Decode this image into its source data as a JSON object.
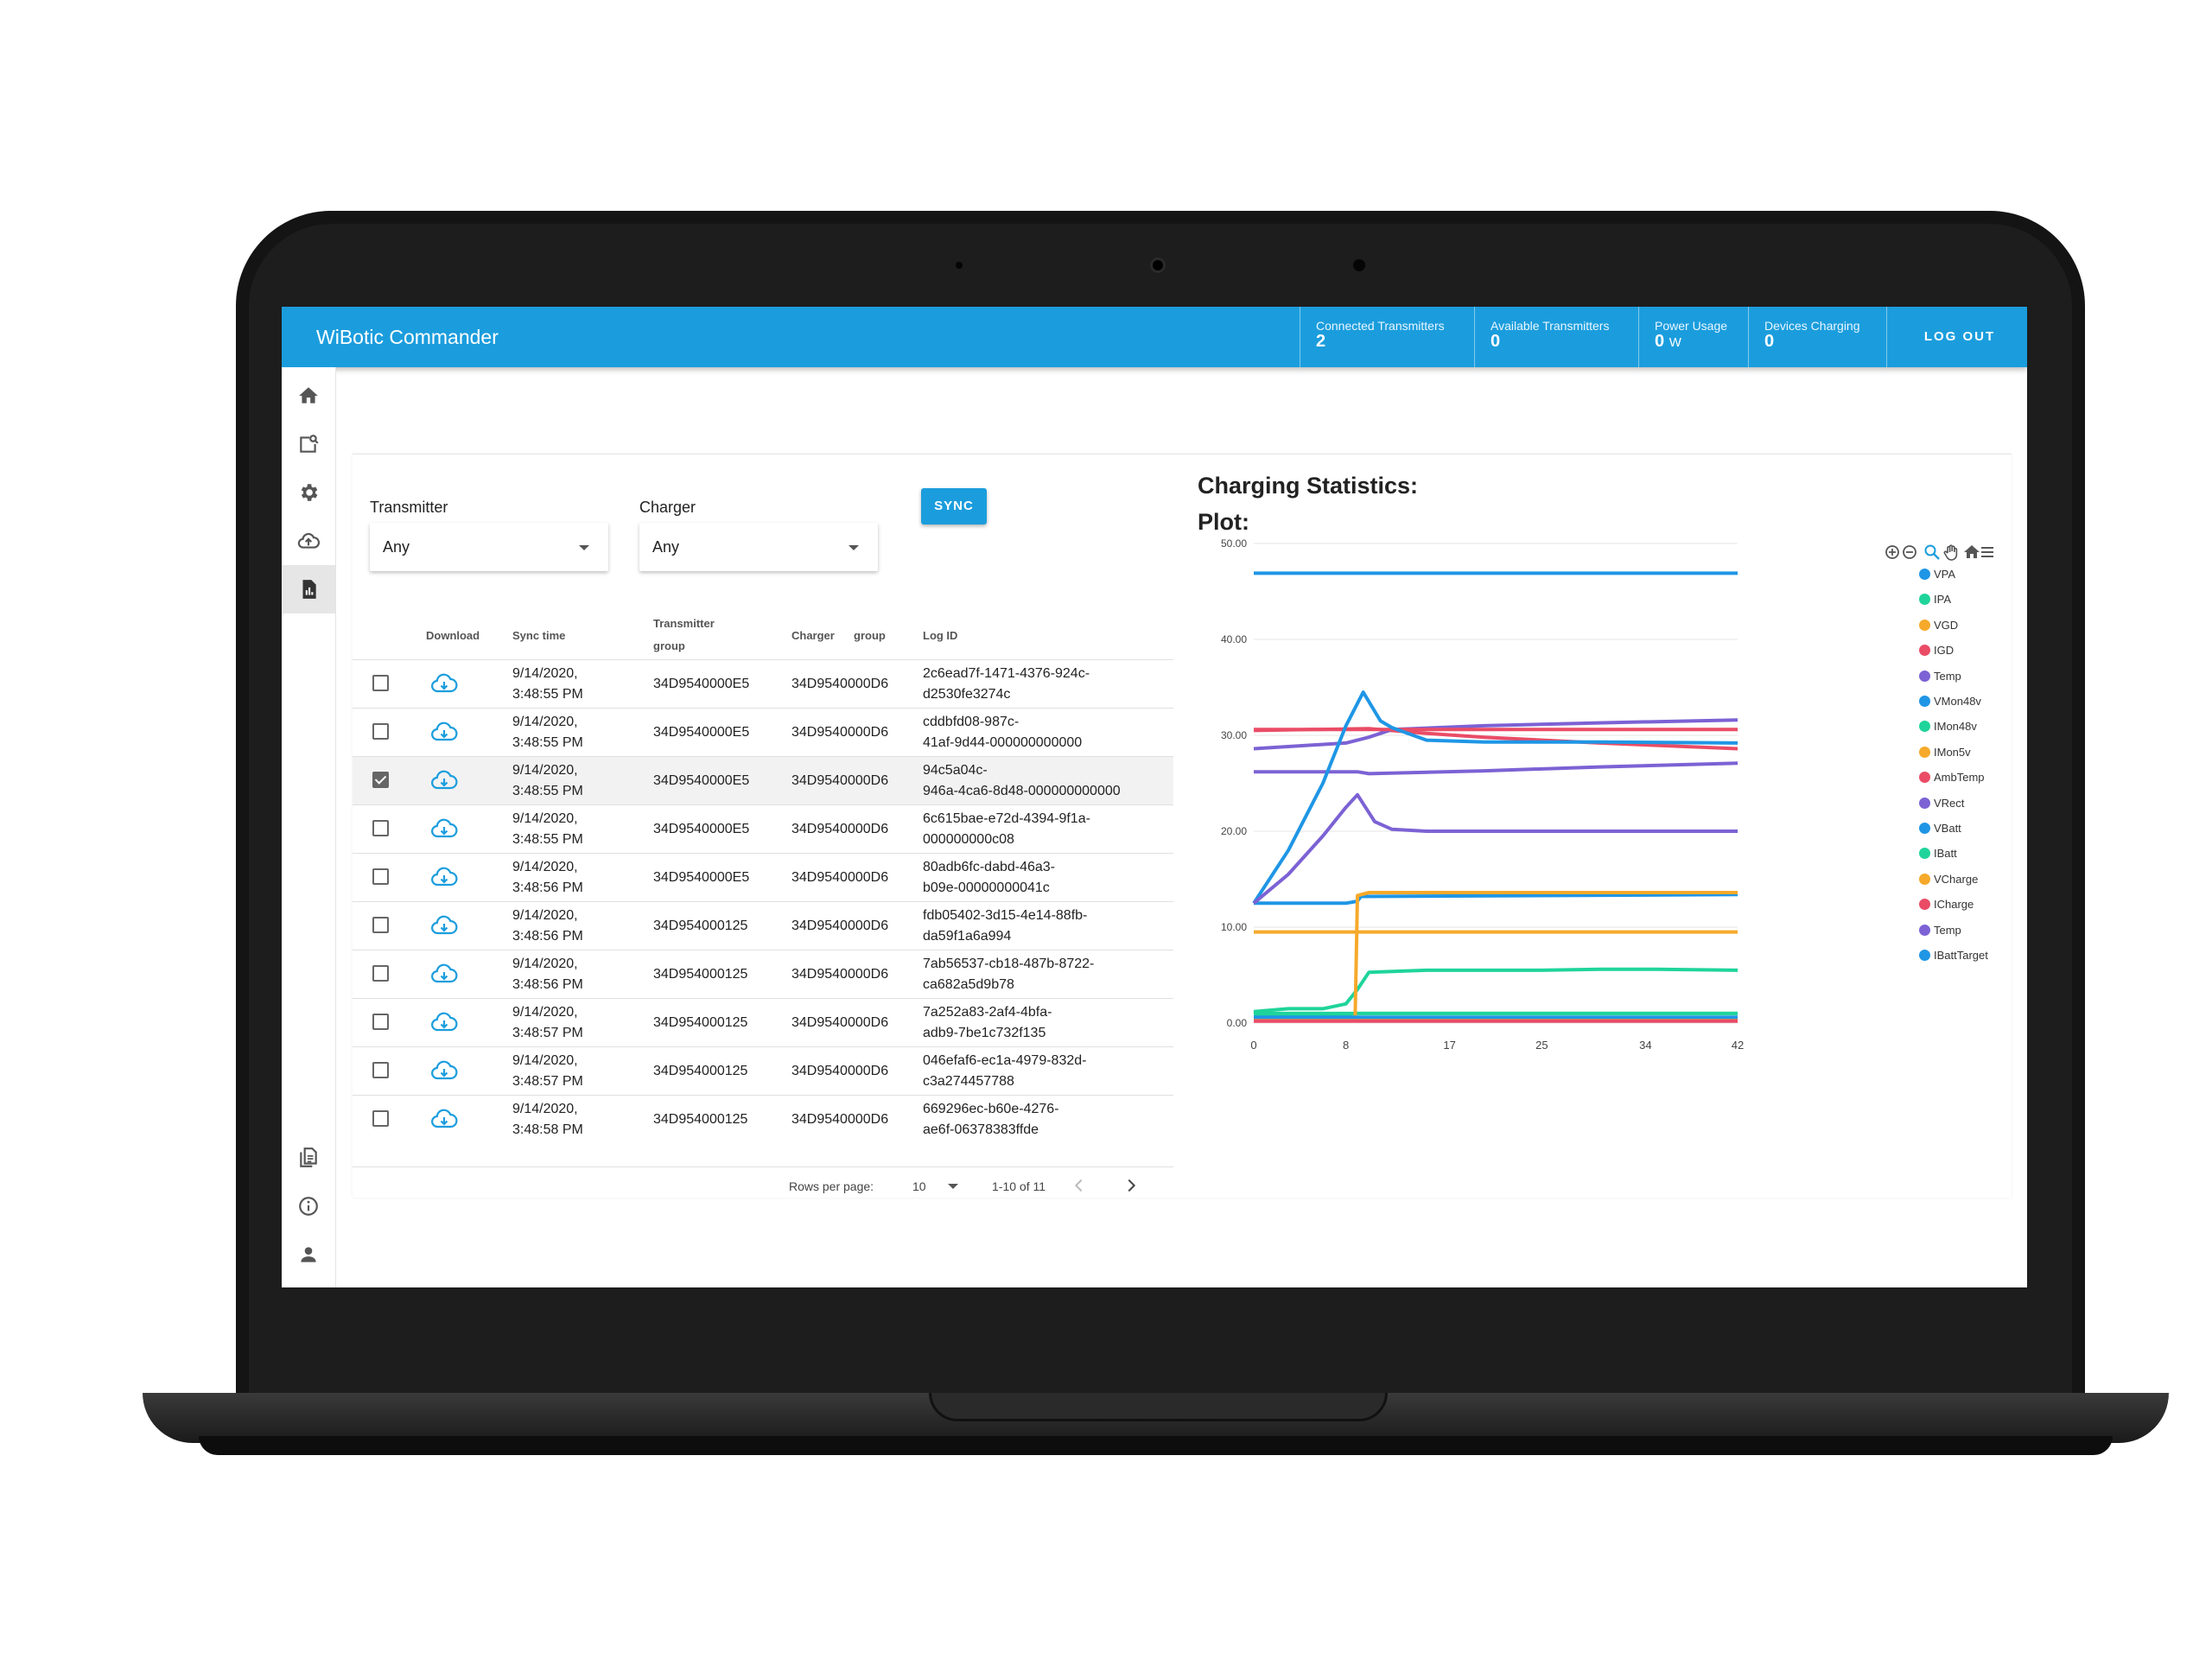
{
  "app": {
    "title": "WiBotic Commander",
    "stats": [
      {
        "label": "Connected Transmitters",
        "value": "2",
        "unit": ""
      },
      {
        "label": "Available Transmitters",
        "value": "0",
        "unit": ""
      },
      {
        "label": "Power Usage",
        "value": "0",
        "unit": "W"
      },
      {
        "label": "Devices Charging",
        "value": "0",
        "unit": ""
      }
    ],
    "logout_label": "LOG OUT",
    "accent_color": "#1b9ddd"
  },
  "sidebar": {
    "items": [
      "home-icon",
      "device-search-icon",
      "gear-icon",
      "cloud-upload-icon",
      "report-icon",
      "documents-icon",
      "info-icon",
      "user-icon"
    ],
    "active": "report-icon"
  },
  "filters": {
    "transmitter_label": "Transmitter",
    "transmitter_value": "Any",
    "charger_label": "Charger",
    "charger_value": "Any",
    "sync_label": "SYNC"
  },
  "table": {
    "headers": {
      "download": "Download",
      "sync_time": "Sync time",
      "transmitter_group_1": "Transmitter",
      "transmitter_group_2": "group",
      "charger": "Charger",
      "charger_group": "group",
      "log_id": "Log ID"
    },
    "rows": [
      {
        "checked": false,
        "date": "9/14/2020,",
        "time": "3:48:55 PM",
        "transmitter": "34D9540000E5",
        "charger": "34D9540000D6",
        "log1": "2c6ead7f-1471-4376-924c-",
        "log2": "d2530fe3274c"
      },
      {
        "checked": false,
        "date": "9/14/2020,",
        "time": "3:48:55 PM",
        "transmitter": "34D9540000E5",
        "charger": "34D9540000D6",
        "log1": "cddbfd08-987c-",
        "log2": "41af-9d44-000000000000"
      },
      {
        "checked": true,
        "date": "9/14/2020,",
        "time": "3:48:55 PM",
        "transmitter": "34D9540000E5",
        "charger": "34D9540000D6",
        "log1": "94c5a04c-",
        "log2": "946a-4ca6-8d48-000000000000"
      },
      {
        "checked": false,
        "date": "9/14/2020,",
        "time": "3:48:55 PM",
        "transmitter": "34D9540000E5",
        "charger": "34D9540000D6",
        "log1": "6c615bae-e72d-4394-9f1a-",
        "log2": "000000000c08"
      },
      {
        "checked": false,
        "date": "9/14/2020,",
        "time": "3:48:56 PM",
        "transmitter": "34D9540000E5",
        "charger": "34D9540000D6",
        "log1": "80adb6fc-dabd-46a3-",
        "log2": "b09e-00000000041c"
      },
      {
        "checked": false,
        "date": "9/14/2020,",
        "time": "3:48:56 PM",
        "transmitter": "34D954000125",
        "charger": "34D9540000D6",
        "log1": "fdb05402-3d15-4e14-88fb-",
        "log2": "da59f1a6a994"
      },
      {
        "checked": false,
        "date": "9/14/2020,",
        "time": "3:48:56 PM",
        "transmitter": "34D954000125",
        "charger": "34D9540000D6",
        "log1": "7ab56537-cb18-487b-8722-",
        "log2": "ca682a5d9b78"
      },
      {
        "checked": false,
        "date": "9/14/2020,",
        "time": "3:48:57 PM",
        "transmitter": "34D954000125",
        "charger": "34D9540000D6",
        "log1": "7a252a83-2af4-4bfa-",
        "log2": "adb9-7be1c732f135"
      },
      {
        "checked": false,
        "date": "9/14/2020,",
        "time": "3:48:57 PM",
        "transmitter": "34D954000125",
        "charger": "34D9540000D6",
        "log1": "046efaf6-ec1a-4979-832d-",
        "log2": "c3a274457788"
      },
      {
        "checked": false,
        "date": "9/14/2020,",
        "time": "3:48:58 PM",
        "transmitter": "34D954000125",
        "charger": "34D9540000D6",
        "log1": "669296ec-b60e-4276-",
        "log2": "ae6f-06378383ffde"
      }
    ],
    "footer": {
      "rows_per_page_label": "Rows per page:",
      "rows_per_page_value": "10",
      "range": "1-10 of 11"
    }
  },
  "chart_heading": "Charging Statistics:",
  "plot_heading": "Plot:",
  "toolbar_icons": [
    "zoom-in-icon",
    "zoom-out-icon",
    "zoom-select-icon",
    "pan-icon",
    "reset-home-icon",
    "menu-icon"
  ],
  "chart_data": {
    "type": "line",
    "xlim": [
      0,
      42
    ],
    "ylim": [
      0,
      50
    ],
    "x_ticks": [
      "0",
      "8",
      "17",
      "25",
      "34",
      "42"
    ],
    "y_ticks": [
      "0.00",
      "10.00",
      "20.00",
      "30.00",
      "40.00",
      "50.00"
    ],
    "grid": true,
    "legend_position": "right",
    "series": [
      {
        "name": "VPA",
        "color": "#1f96e5",
        "points": [
          [
            0,
            46.9
          ],
          [
            10,
            46.9
          ],
          [
            20,
            46.9
          ],
          [
            30,
            46.9
          ],
          [
            42,
            46.9
          ]
        ]
      },
      {
        "name": "IPA",
        "color": "#1fd49a",
        "points": [
          [
            0,
            1.0
          ],
          [
            0.5,
            1.1
          ],
          [
            0.5,
            1.0
          ],
          [
            42,
            1.0
          ]
        ]
      },
      {
        "name": "VGD",
        "color": "#f6a92a",
        "points": [
          [
            0,
            9.5
          ],
          [
            42,
            9.5
          ]
        ]
      },
      {
        "name": "IGD",
        "color": "#ea4c66",
        "points": [
          [
            0,
            30.5
          ],
          [
            10,
            30.7
          ],
          [
            15,
            30.2
          ],
          [
            20,
            29.8
          ],
          [
            30,
            29.2
          ],
          [
            42,
            28.6
          ]
        ]
      },
      {
        "name": "Temp",
        "color": "#7c62d4",
        "points": [
          [
            0,
            28.6
          ],
          [
            8,
            29.2
          ],
          [
            10,
            29.8
          ],
          [
            12,
            30.6
          ],
          [
            20,
            31.0
          ],
          [
            30,
            31.3
          ],
          [
            42,
            31.6
          ]
        ]
      },
      {
        "name": "VMon48v",
        "color": "#1f96e5",
        "points": [
          [
            0,
            12.5
          ],
          [
            8,
            12.5
          ],
          [
            9,
            12.7
          ],
          [
            9.3,
            13.2
          ],
          [
            42,
            13.4
          ]
        ]
      },
      {
        "name": "IMon48v",
        "color": "#1fd49a",
        "points": [
          [
            0,
            0.9
          ],
          [
            8,
            0.9
          ],
          [
            9,
            1.0
          ],
          [
            42,
            1.0
          ]
        ]
      },
      {
        "name": "IMon5v",
        "color": "#f6a92a",
        "points": [
          [
            0,
            0.3
          ],
          [
            42,
            0.3
          ]
        ]
      },
      {
        "name": "AmbTemp",
        "color": "#ea4c66",
        "points": [
          [
            0,
            30.6
          ],
          [
            42,
            30.6
          ]
        ]
      },
      {
        "name": "VRect",
        "color": "#7c62d4",
        "points": [
          [
            0,
            26.2
          ],
          [
            9,
            26.2
          ],
          [
            10,
            26.0
          ],
          [
            20,
            26.3
          ],
          [
            30,
            26.7
          ],
          [
            42,
            27.1
          ]
        ]
      },
      {
        "name": "VBatt",
        "color": "#1f96e5",
        "points": [
          [
            0,
            12.5
          ],
          [
            3,
            18.0
          ],
          [
            6,
            25.0
          ],
          [
            8,
            31.0
          ],
          [
            9.5,
            34.5
          ],
          [
            11,
            31.5
          ],
          [
            12,
            30.8
          ],
          [
            15,
            29.5
          ],
          [
            20,
            29.3
          ],
          [
            30,
            29.3
          ],
          [
            42,
            29.2
          ]
        ]
      },
      {
        "name": "IBatt",
        "color": "#1fd49a",
        "points": [
          [
            0,
            1.2
          ],
          [
            3,
            1.5
          ],
          [
            6,
            1.5
          ],
          [
            8,
            2.0
          ],
          [
            9,
            3.5
          ],
          [
            10,
            5.3
          ],
          [
            15,
            5.5
          ],
          [
            20,
            5.5
          ],
          [
            25,
            5.5
          ],
          [
            30,
            5.6
          ],
          [
            35,
            5.6
          ],
          [
            42,
            5.5
          ]
        ]
      },
      {
        "name": "VCharge",
        "color": "#f6a92a",
        "points": [
          [
            0,
            0.4
          ],
          [
            8.8,
            0.4
          ],
          [
            9,
            13.3
          ],
          [
            10,
            13.6
          ],
          [
            20,
            13.6
          ],
          [
            30,
            13.6
          ],
          [
            42,
            13.6
          ]
        ]
      },
      {
        "name": "ICharge",
        "color": "#ea4c66",
        "points": [
          [
            0,
            0.2
          ],
          [
            42,
            0.2
          ]
        ]
      },
      {
        "name": "Temp",
        "color": "#7c62d4",
        "points": [
          [
            0,
            12.5
          ],
          [
            3,
            15.5
          ],
          [
            6,
            19.5
          ],
          [
            8,
            22.5
          ],
          [
            9,
            23.8
          ],
          [
            10.5,
            21.0
          ],
          [
            12,
            20.2
          ],
          [
            15,
            20.0
          ],
          [
            20,
            20.0
          ],
          [
            30,
            20.0
          ],
          [
            42,
            20.0
          ]
        ]
      },
      {
        "name": "IBattTarget",
        "color": "#1f96e5",
        "points": [
          [
            0,
            0.6
          ],
          [
            42,
            0.6
          ]
        ]
      }
    ]
  }
}
